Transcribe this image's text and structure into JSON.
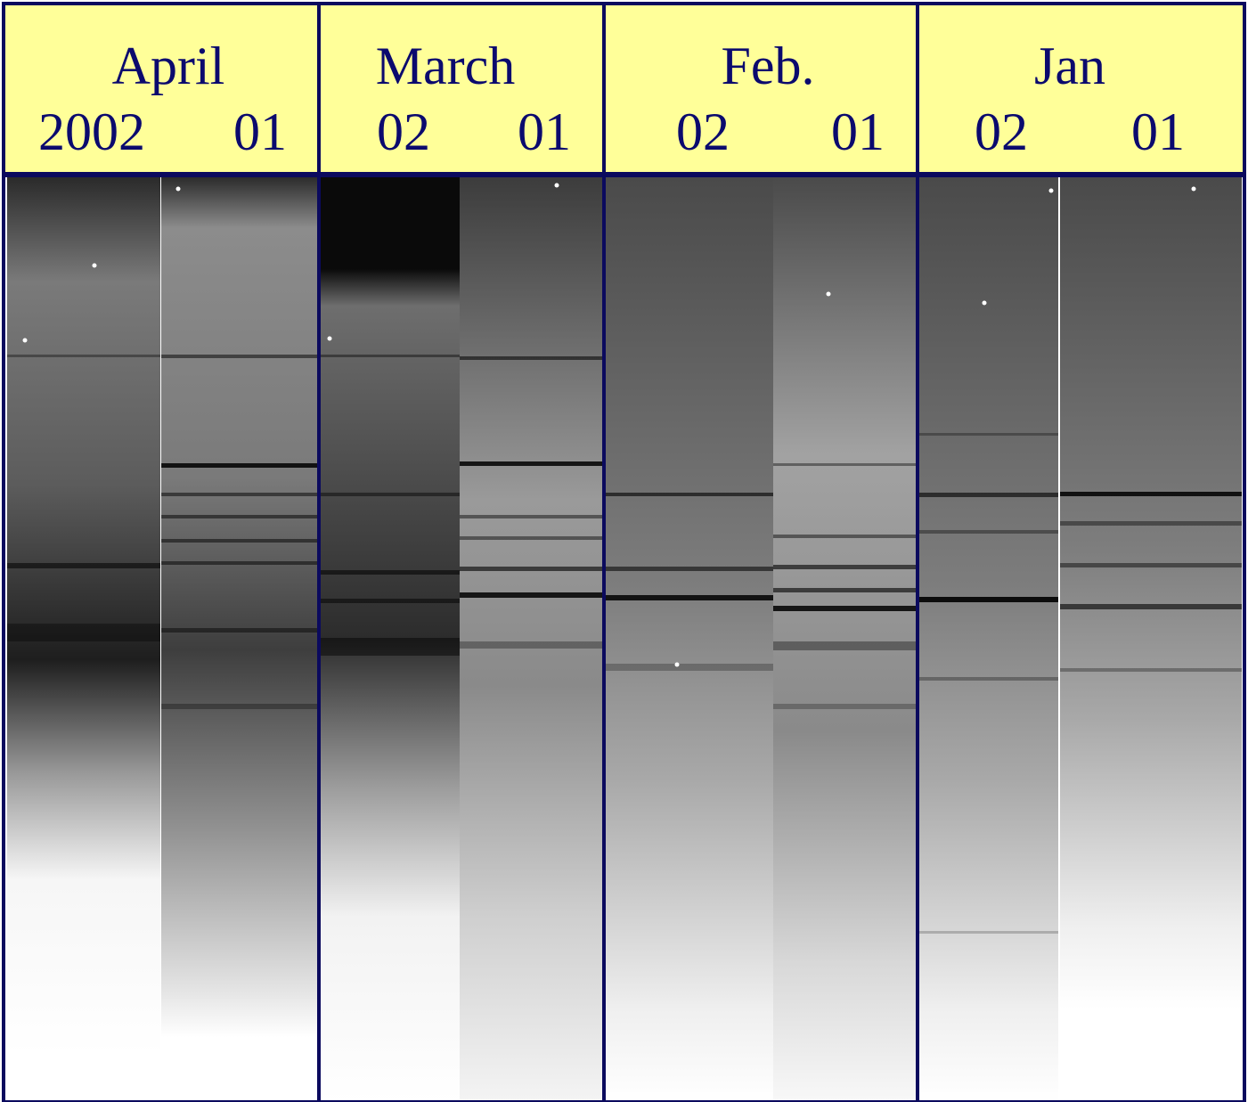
{
  "header_background": "#ffff99",
  "border_color": "#0b0a5e",
  "label_color": "#0b0a6e",
  "panels": [
    {
      "month": "April",
      "lanes": [
        "2002",
        "01"
      ]
    },
    {
      "month": "March",
      "lanes": [
        "02",
        "01"
      ]
    },
    {
      "month": "Feb.",
      "lanes": [
        "02",
        "01"
      ]
    },
    {
      "month": "Jan",
      "lanes": [
        "02",
        "01"
      ]
    }
  ]
}
